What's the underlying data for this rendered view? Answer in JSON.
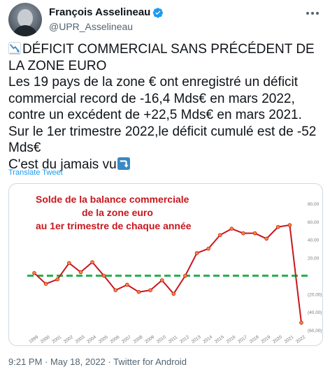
{
  "author": {
    "display_name": "François Asselineau",
    "handle": "@UPR_Asselineau",
    "verified": true,
    "avatar_icon": "profile-photo"
  },
  "tweet": {
    "headline_icon": "chart-decreasing-emoji",
    "headline": "DÉFICIT COMMERCIAL SANS PRÉCÉDENT DE LA ZONE EURO",
    "body_1": "Les 19 pays de la zone € ont enregistré un déficit commercial record de -16,4 Mds€ en mars 2022, contre un excédent de +22,5 Mds€ en mars 2021.",
    "body_2": "Sur le 1er trimestre 2022,le déficit cumulé est de -52 Mds€",
    "body_3": "C'est du jamais vu",
    "body_3_icon": "right-arrow-curving-down-emoji",
    "translate_label": "Translate Tweet"
  },
  "meta": {
    "time": "9:21 PM",
    "separator": "·",
    "date": "May 18, 2022",
    "source": "Twitter for Android"
  },
  "colors": {
    "line": "#c8161d",
    "zero_line": "#22b14c",
    "title": "#c8161d",
    "link": "#1d9bf0"
  },
  "chart_data": {
    "type": "line",
    "title_lines": [
      "Solde de la balance commerciale",
      "de la zone euro",
      "au 1er trimestre de chaque année"
    ],
    "categories": [
      "1999",
      "2000",
      "2001",
      "2002",
      "2003",
      "2004",
      "2005",
      "2006",
      "2007",
      "2008",
      "2009",
      "2010",
      "2011",
      "2012",
      "2013",
      "2014",
      "2015",
      "2016",
      "2017",
      "2018",
      "2019",
      "2020",
      "2021",
      "2022"
    ],
    "series": [
      {
        "values": [
          3,
          -9,
          -4,
          14,
          4,
          15,
          0,
          -16,
          -10,
          -18,
          -16,
          -5,
          -20,
          0,
          25,
          30,
          45,
          52,
          47,
          47,
          41,
          54,
          56,
          -52
        ]
      }
    ],
    "ylim": [
      -60,
      80
    ],
    "y_ticks": [
      80,
      60,
      40,
      20,
      0,
      -20,
      -40,
      -60
    ],
    "y_tick_labels": [
      "80,00",
      "60,00",
      "40,00",
      "20,00",
      "",
      "(20,00)",
      "(40,00)",
      "(60,00)"
    ],
    "zero_line": {
      "value": 0,
      "style": "dashed"
    },
    "grid": false
  }
}
